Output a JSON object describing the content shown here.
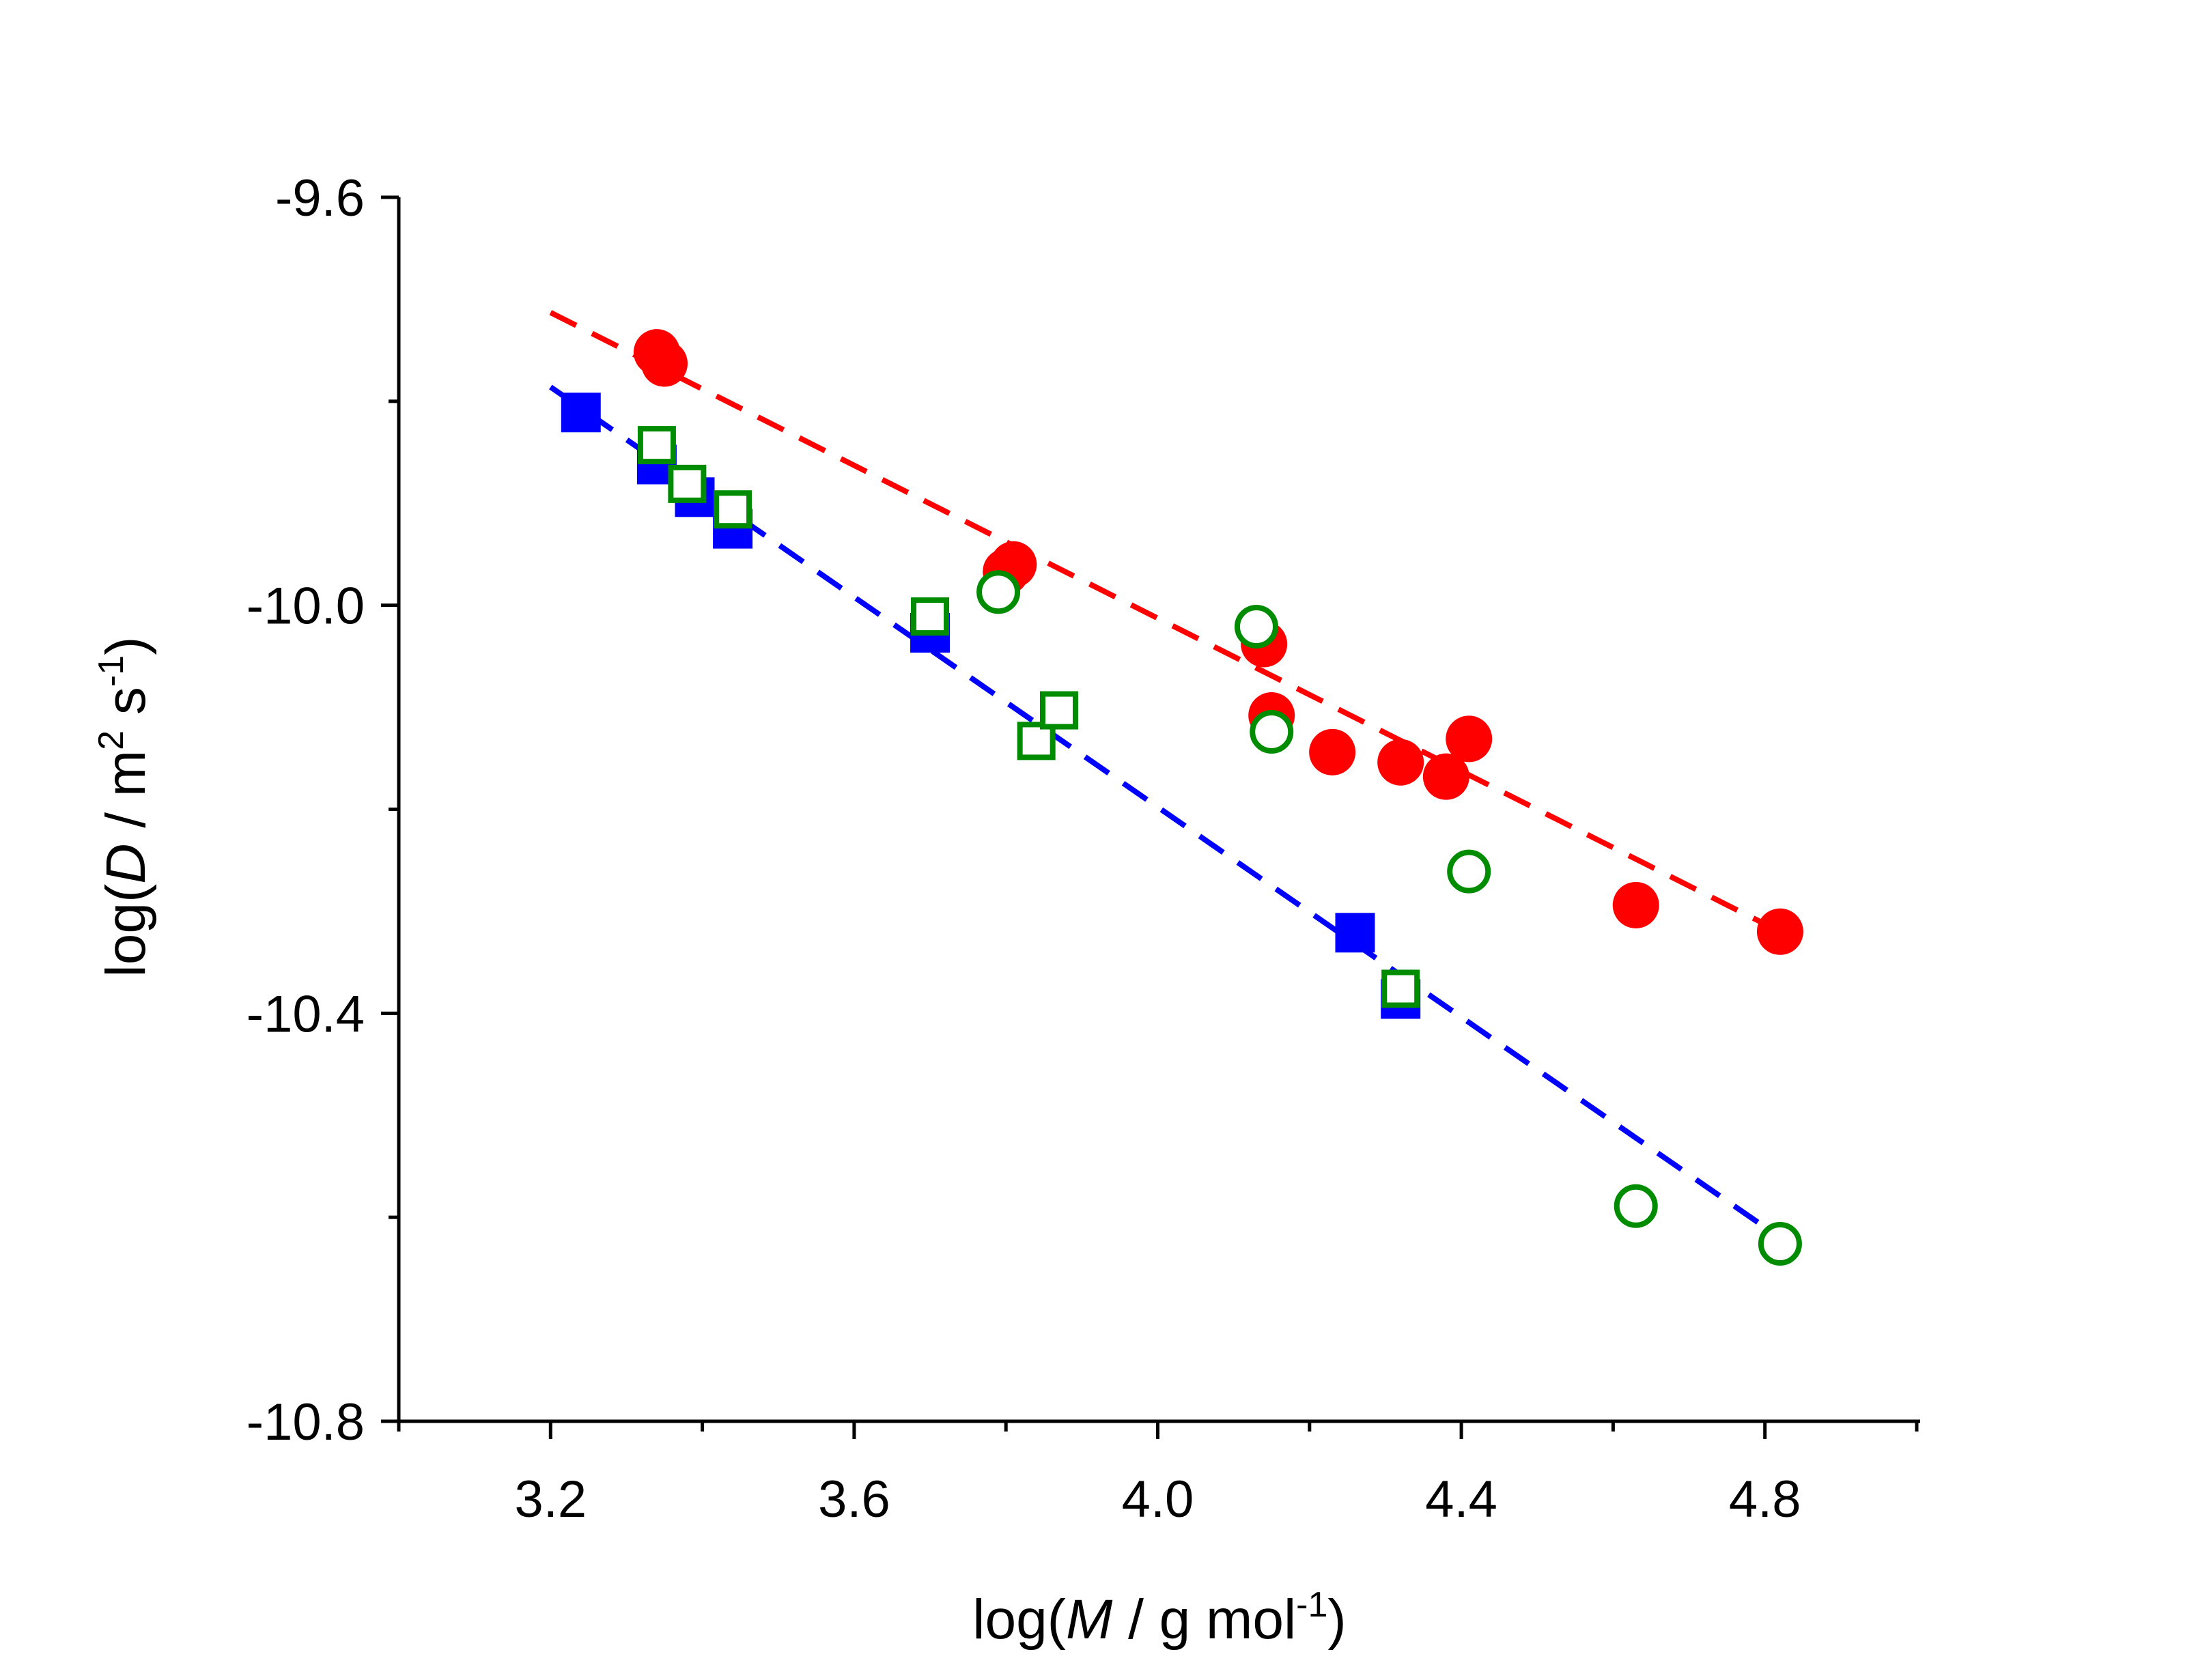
{
  "chart_data": {
    "type": "scatter",
    "xlabel": "log(M / g mol-1)",
    "ylabel": "log(D / m2 s-1)",
    "x_axis_title": {
      "prefix": "log(",
      "italic": "M",
      "middle": " / g mol",
      "sup": "-1",
      "suffix": ")"
    },
    "y_axis_title": {
      "prefix": "log(",
      "italic": "D",
      "middle": " / m",
      "sup1": "2",
      "middle2": " s",
      "sup2": "-1",
      "suffix": ")"
    },
    "xlim": [
      3.0,
      5.0
    ],
    "ylim": [
      -10.8,
      -9.6
    ],
    "x_ticks": [
      {
        "value": 3.2,
        "label": "3.2"
      },
      {
        "value": 3.6,
        "label": "3.6"
      },
      {
        "value": 4.0,
        "label": "4.0"
      },
      {
        "value": 4.4,
        "label": "4.4"
      },
      {
        "value": 4.8,
        "label": "4.8"
      }
    ],
    "x_minor_ticks": [
      3.0,
      3.4,
      3.8,
      4.2,
      4.6,
      5.0
    ],
    "y_ticks": [
      {
        "value": -9.6,
        "label": "-9.6"
      },
      {
        "value": -10.0,
        "label": "-10.0"
      },
      {
        "value": -10.4,
        "label": "-10.4"
      },
      {
        "value": -10.8,
        "label": "-10.8"
      }
    ],
    "y_minor_ticks": [
      -9.8,
      -10.2,
      -10.6
    ],
    "grid": false,
    "series": [
      {
        "marker": "circle-filled",
        "color": "#ff0000",
        "points": [
          [
            3.34,
            -9.752
          ],
          [
            3.35,
            -9.763
          ],
          [
            3.81,
            -9.96
          ],
          [
            3.8,
            -9.967
          ],
          [
            4.14,
            -10.038
          ],
          [
            4.15,
            -10.108
          ],
          [
            4.23,
            -10.144
          ],
          [
            4.32,
            -10.154
          ],
          [
            4.38,
            -10.168
          ],
          [
            4.41,
            -10.131
          ],
          [
            4.63,
            -10.294
          ],
          [
            4.82,
            -10.32
          ]
        ]
      },
      {
        "marker": "square-filled",
        "color": "#0000ff",
        "points": [
          [
            3.24,
            -9.811
          ],
          [
            3.34,
            -9.862
          ],
          [
            3.39,
            -9.894
          ],
          [
            3.44,
            -9.925
          ],
          [
            3.7,
            -10.027
          ],
          [
            4.26,
            -10.321
          ],
          [
            4.32,
            -10.386
          ]
        ]
      },
      {
        "marker": "square-open",
        "color": "#008c00",
        "points": [
          [
            3.34,
            -9.843
          ],
          [
            3.38,
            -9.881
          ],
          [
            3.44,
            -9.906
          ],
          [
            3.7,
            -10.011
          ],
          [
            3.84,
            -10.133
          ],
          [
            3.87,
            -10.103
          ],
          [
            4.32,
            -10.376
          ]
        ]
      },
      {
        "marker": "circle-open",
        "color": "#008c00",
        "points": [
          [
            3.79,
            -9.987
          ],
          [
            4.13,
            -10.021
          ],
          [
            4.15,
            -10.124
          ],
          [
            4.41,
            -10.261
          ],
          [
            4.63,
            -10.589
          ],
          [
            4.82,
            -10.626
          ]
        ]
      }
    ],
    "fit_lines": [
      {
        "style": "dashed",
        "color": "#ff0000",
        "x": [
          3.2,
          4.82
        ],
        "y": [
          -9.713,
          -10.32
        ]
      },
      {
        "style": "dashed",
        "color": "#0000ff",
        "x": [
          3.2,
          4.82
        ],
        "y": [
          -9.786,
          -10.62
        ]
      }
    ]
  }
}
